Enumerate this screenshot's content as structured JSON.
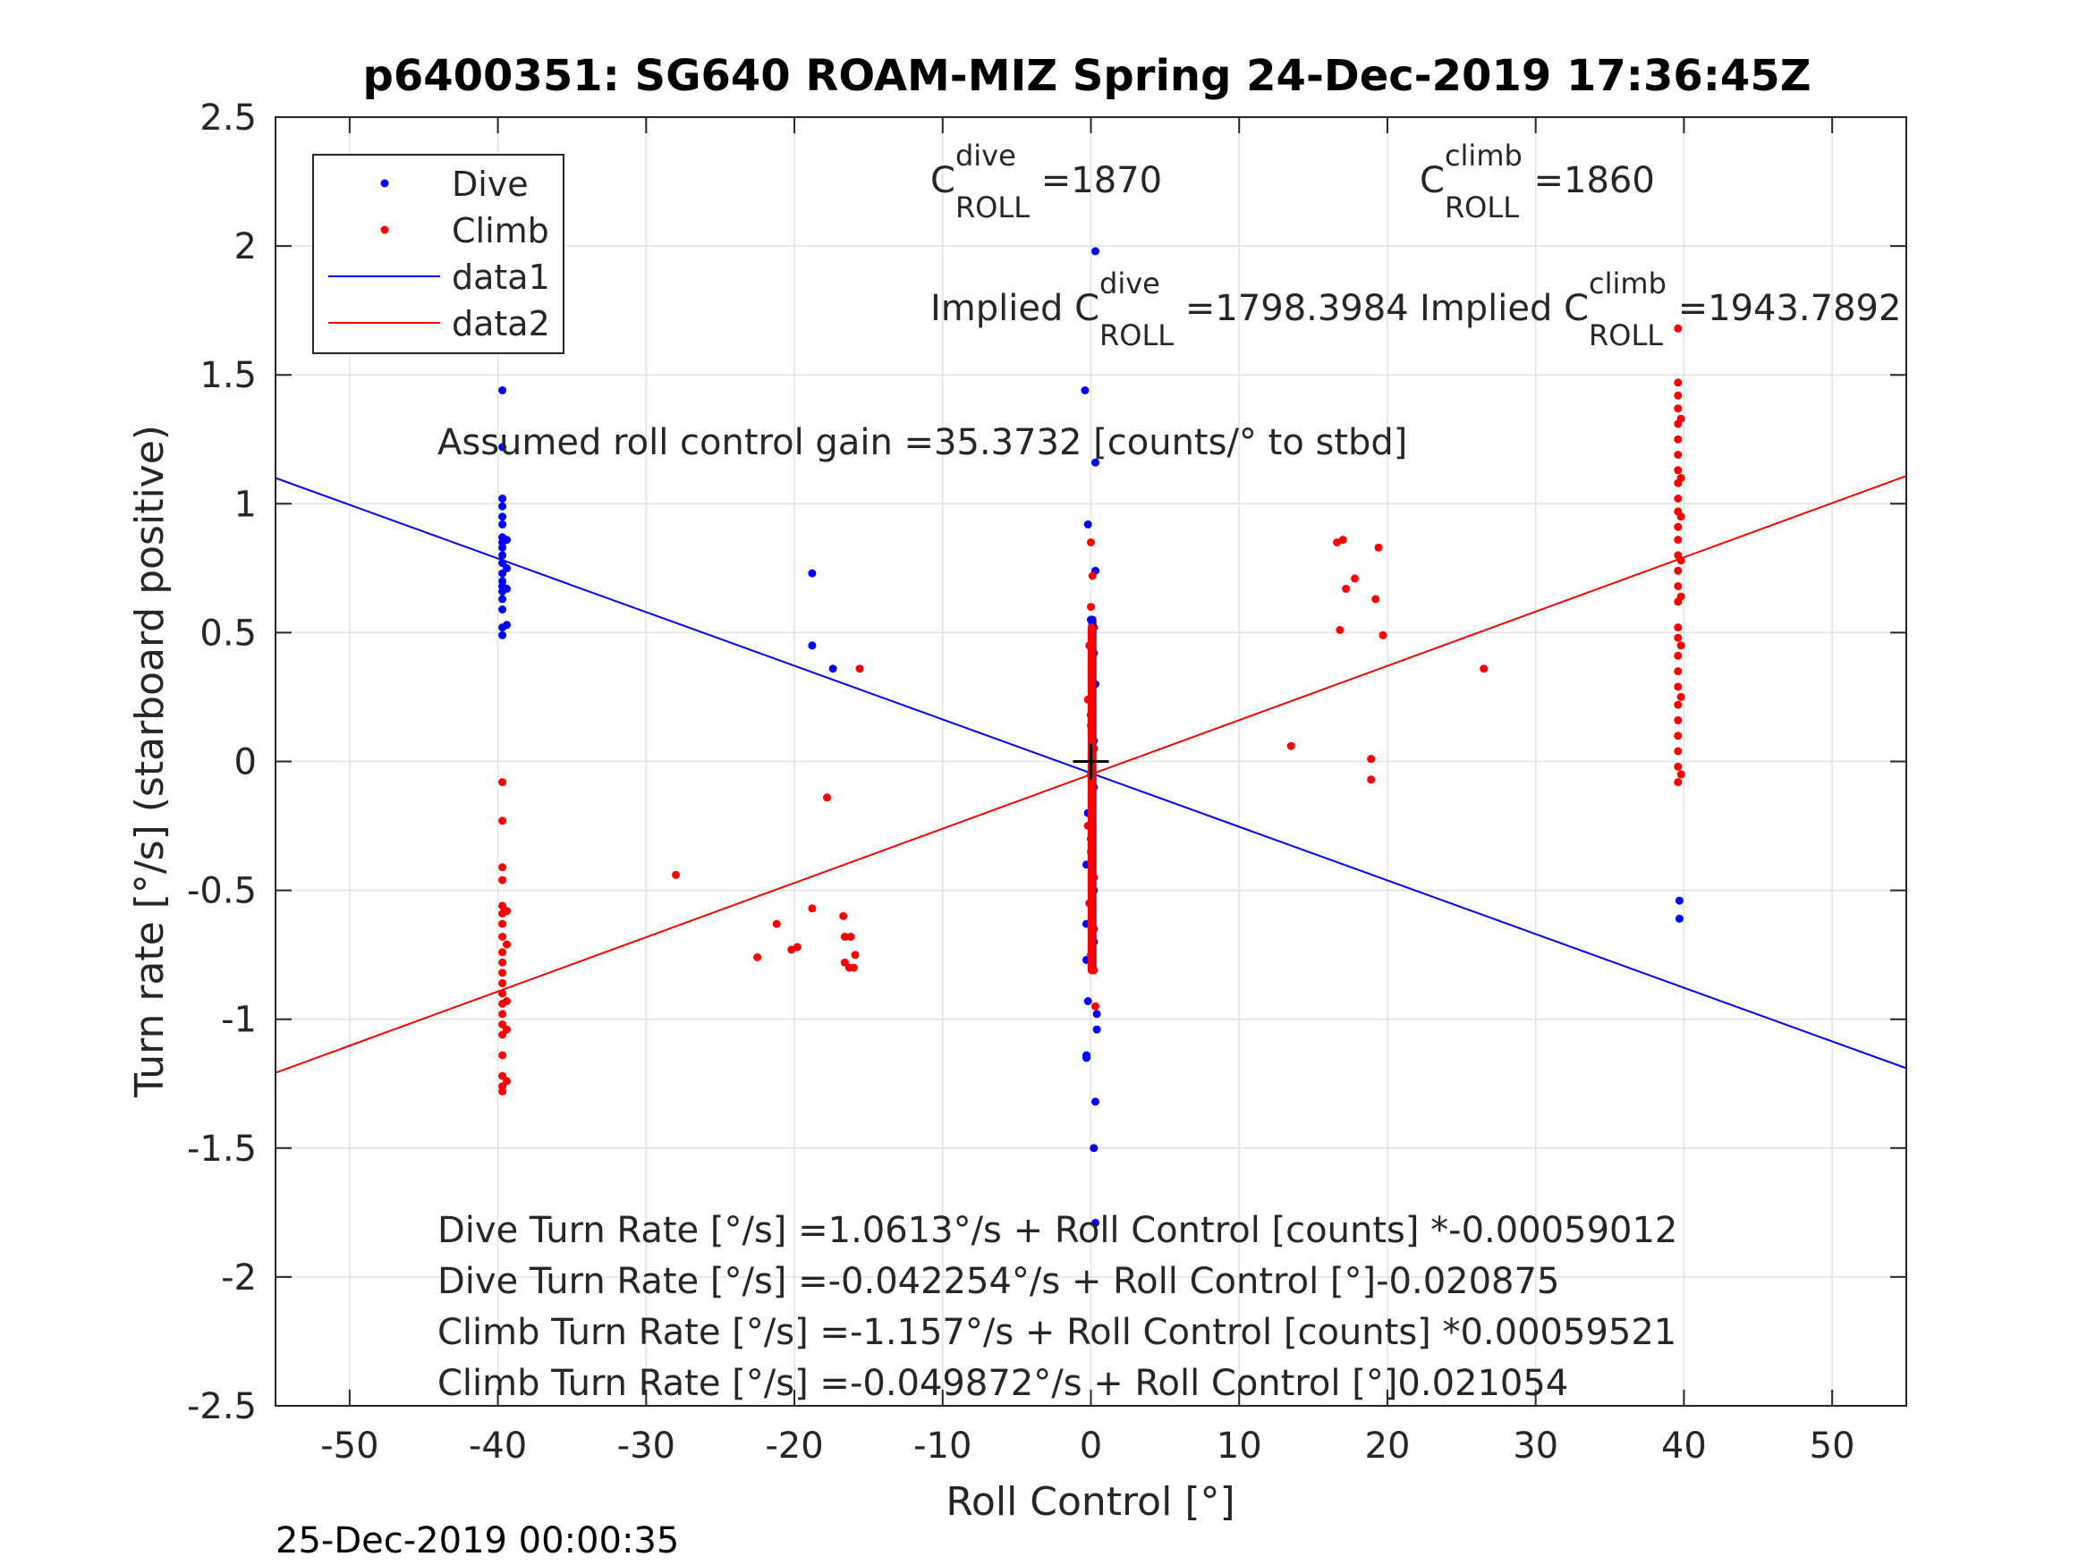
{
  "chart_data": {
    "type": "scatter",
    "title": "p6400351: SG640 ROAM-MIZ Spring 24-Dec-2019 17:36:45Z",
    "xlabel": "Roll Control [°]",
    "ylabel": "Turn rate [°/s] (starboard positive)",
    "xlim": [
      -55,
      55
    ],
    "ylim": [
      -2.5,
      2.5
    ],
    "xticks": [
      -50,
      -40,
      -30,
      -20,
      -10,
      0,
      10,
      20,
      30,
      40,
      50
    ],
    "yticks": [
      2.5,
      2,
      1.5,
      1,
      0.5,
      0,
      -0.5,
      -1,
      -1.5,
      -2,
      -2.5
    ],
    "xtick_labels": [
      "-50",
      "-40",
      "-30",
      "-20",
      "-10",
      "0",
      "10",
      "20",
      "30",
      "40",
      "50"
    ],
    "ytick_labels": [
      "2.5",
      "2",
      "1.5",
      "1",
      "0.5",
      "0",
      "-0.5",
      "-1",
      "-1.5",
      "-2",
      "-2.5"
    ],
    "grid": true,
    "legend_position": "top-left",
    "legend": [
      "Dive",
      "Climb",
      "data1",
      "data2"
    ],
    "colors": {
      "dive": "#0000ff",
      "climb": "#ff0000",
      "origin": "#000000"
    },
    "series": [
      {
        "name": "Dive",
        "kind": "points",
        "color": "#0000ff",
        "points": [
          [
            -39.7,
            1.44
          ],
          [
            -39.7,
            1.22
          ],
          [
            -39.7,
            1.02
          ],
          [
            -39.7,
            0.99
          ],
          [
            -39.7,
            0.95
          ],
          [
            -39.7,
            0.92
          ],
          [
            -39.7,
            0.87
          ],
          [
            -39.7,
            0.85
          ],
          [
            -39.7,
            0.83
          ],
          [
            -39.7,
            0.8
          ],
          [
            -39.7,
            0.77
          ],
          [
            -39.7,
            0.73
          ],
          [
            -39.7,
            0.7
          ],
          [
            -39.7,
            0.68
          ],
          [
            -39.7,
            0.66
          ],
          [
            -39.7,
            0.63
          ],
          [
            -39.7,
            0.59
          ],
          [
            -39.7,
            0.52
          ],
          [
            -39.7,
            0.49
          ],
          [
            -39.4,
            0.86
          ],
          [
            -39.4,
            0.75
          ],
          [
            -39.4,
            0.67
          ],
          [
            -39.4,
            0.53
          ],
          [
            -18.8,
            0.73
          ],
          [
            -18.8,
            0.45
          ],
          [
            -17.4,
            0.36
          ],
          [
            -0.4,
            1.44
          ],
          [
            0.3,
            1.98
          ],
          [
            0.3,
            1.16
          ],
          [
            -0.2,
            0.92
          ],
          [
            0.3,
            0.74
          ],
          [
            0.0,
            0.55
          ],
          [
            0.2,
            0.42
          ],
          [
            0.3,
            0.3
          ],
          [
            0.0,
            0.18
          ],
          [
            0.2,
            0.08
          ],
          [
            0.2,
            -0.1
          ],
          [
            -0.2,
            -0.2
          ],
          [
            0.0,
            -0.3
          ],
          [
            -0.3,
            -0.4
          ],
          [
            0.2,
            -0.5
          ],
          [
            -0.1,
            -0.55
          ],
          [
            -0.3,
            -0.63
          ],
          [
            0.2,
            -0.7
          ],
          [
            -0.3,
            -0.77
          ],
          [
            0.1,
            -0.8
          ],
          [
            -0.2,
            -0.93
          ],
          [
            0.4,
            -0.98
          ],
          [
            0.4,
            -1.04
          ],
          [
            -0.3,
            -1.14
          ],
          [
            -0.3,
            -1.15
          ],
          [
            0.3,
            -1.32
          ],
          [
            0.2,
            -1.5
          ],
          [
            0.3,
            -1.79
          ],
          [
            39.7,
            -0.54
          ],
          [
            39.7,
            -0.61
          ]
        ]
      },
      {
        "name": "Climb",
        "kind": "points",
        "color": "#ff0000",
        "points": [
          [
            -39.7,
            -0.08
          ],
          [
            -39.7,
            -0.23
          ],
          [
            -39.7,
            -0.41
          ],
          [
            -39.7,
            -0.46
          ],
          [
            -39.7,
            -0.56
          ],
          [
            -39.7,
            -0.59
          ],
          [
            -39.7,
            -0.63
          ],
          [
            -39.7,
            -0.68
          ],
          [
            -39.7,
            -0.74
          ],
          [
            -39.7,
            -0.78
          ],
          [
            -39.7,
            -0.82
          ],
          [
            -39.7,
            -0.86
          ],
          [
            -39.7,
            -0.9
          ],
          [
            -39.7,
            -0.94
          ],
          [
            -39.7,
            -0.98
          ],
          [
            -39.7,
            -1.02
          ],
          [
            -39.7,
            -1.06
          ],
          [
            -39.7,
            -1.14
          ],
          [
            -39.7,
            -1.22
          ],
          [
            -39.7,
            -1.26
          ],
          [
            -39.7,
            -1.28
          ],
          [
            -39.4,
            -0.58
          ],
          [
            -39.4,
            -0.71
          ],
          [
            -39.4,
            -0.93
          ],
          [
            -39.4,
            -1.04
          ],
          [
            -39.4,
            -1.24
          ],
          [
            -28.0,
            -0.44
          ],
          [
            -22.5,
            -0.76
          ],
          [
            -21.2,
            -0.63
          ],
          [
            -20.2,
            -0.73
          ],
          [
            -19.8,
            -0.72
          ],
          [
            -18.8,
            -0.57
          ],
          [
            -17.8,
            -0.14
          ],
          [
            -16.7,
            -0.6
          ],
          [
            -16.6,
            -0.68
          ],
          [
            -16.6,
            -0.78
          ],
          [
            -16.3,
            -0.8
          ],
          [
            -16.2,
            -0.68
          ],
          [
            -16.0,
            -0.8
          ],
          [
            -15.9,
            -0.75
          ],
          [
            -15.6,
            0.36
          ],
          [
            0.0,
            0.85
          ],
          [
            0.1,
            0.72
          ],
          [
            0.0,
            0.6
          ],
          [
            0.2,
            0.52
          ],
          [
            -0.1,
            0.45
          ],
          [
            0.1,
            0.35
          ],
          [
            -0.2,
            0.24
          ],
          [
            0.0,
            0.14
          ],
          [
            0.2,
            0.05
          ],
          [
            0.0,
            -0.05
          ],
          [
            0.1,
            -0.15
          ],
          [
            -0.2,
            -0.25
          ],
          [
            0.0,
            -0.35
          ],
          [
            0.2,
            -0.45
          ],
          [
            -0.1,
            -0.55
          ],
          [
            0.2,
            -0.65
          ],
          [
            0.0,
            -0.75
          ],
          [
            0.2,
            -0.81
          ],
          [
            0.3,
            -0.95
          ],
          [
            13.5,
            0.06
          ],
          [
            16.6,
            0.85
          ],
          [
            16.8,
            0.51
          ],
          [
            17.0,
            0.86
          ],
          [
            17.2,
            0.67
          ],
          [
            17.8,
            0.71
          ],
          [
            18.9,
            0.01
          ],
          [
            18.9,
            -0.07
          ],
          [
            19.2,
            0.63
          ],
          [
            19.4,
            0.83
          ],
          [
            19.7,
            0.49
          ],
          [
            26.5,
            0.36
          ],
          [
            39.6,
            1.68
          ],
          [
            39.6,
            1.47
          ],
          [
            39.6,
            1.42
          ],
          [
            39.6,
            1.37
          ],
          [
            39.6,
            1.31
          ],
          [
            39.6,
            1.25
          ],
          [
            39.6,
            1.19
          ],
          [
            39.6,
            1.13
          ],
          [
            39.6,
            1.08
          ],
          [
            39.6,
            1.02
          ],
          [
            39.6,
            0.97
          ],
          [
            39.6,
            0.91
          ],
          [
            39.6,
            0.86
          ],
          [
            39.6,
            0.8
          ],
          [
            39.6,
            0.74
          ],
          [
            39.6,
            0.68
          ],
          [
            39.6,
            0.62
          ],
          [
            39.6,
            0.52
          ],
          [
            39.6,
            0.48
          ],
          [
            39.6,
            0.41
          ],
          [
            39.6,
            0.35
          ],
          [
            39.6,
            0.29
          ],
          [
            39.6,
            0.22
          ],
          [
            39.6,
            0.16
          ],
          [
            39.6,
            0.1
          ],
          [
            39.6,
            0.04
          ],
          [
            39.6,
            -0.02
          ],
          [
            39.6,
            -0.08
          ],
          [
            39.8,
            1.33
          ],
          [
            39.8,
            1.1
          ],
          [
            39.8,
            0.95
          ],
          [
            39.8,
            0.78
          ],
          [
            39.8,
            0.64
          ],
          [
            39.8,
            0.45
          ],
          [
            39.8,
            0.25
          ],
          [
            39.8,
            -0.05
          ]
        ]
      },
      {
        "name": "data1",
        "kind": "line",
        "color": "#0000ff",
        "points": [
          [
            -55,
            1.1
          ],
          [
            55,
            -1.19
          ]
        ]
      },
      {
        "name": "data2",
        "kind": "line",
        "color": "#ff0000",
        "points": [
          [
            -55,
            -1.208
          ],
          [
            55,
            1.108
          ]
        ]
      }
    ],
    "origin_marker": [
      0,
      0
    ],
    "annotations": {
      "c_dive": {
        "base": "C",
        "sup": "dive",
        "sub": "ROLL",
        "value": " =1870"
      },
      "c_climb": {
        "base": "C",
        "sup": "climb",
        "sub": "ROLL",
        "value": " =1860"
      },
      "implied_dive": {
        "base": "Implied C",
        "sup": "dive",
        "sub": "ROLL",
        "value": " =1798.3984"
      },
      "implied_climb": {
        "base": "Implied C",
        "sup": "climb",
        "sub": "ROLL",
        "value": " =1943.7892"
      },
      "gain": "Assumed roll control gain =35.3732 [counts/° to stbd]",
      "eq1": "Dive Turn Rate [°/s] =1.0613°/s + Roll Control [counts] *-0.00059012",
      "eq2": "Dive Turn Rate [°/s] =-0.042254°/s + Roll Control [°]-0.020875",
      "eq3": "Climb Turn Rate [°/s] =-1.157°/s + Roll Control [counts] *0.00059521",
      "eq4": "Climb Turn Rate [°/s] =-0.049872°/s + Roll Control [°]0.021054"
    },
    "timestamp": "25-Dec-2019 00:00:35"
  }
}
